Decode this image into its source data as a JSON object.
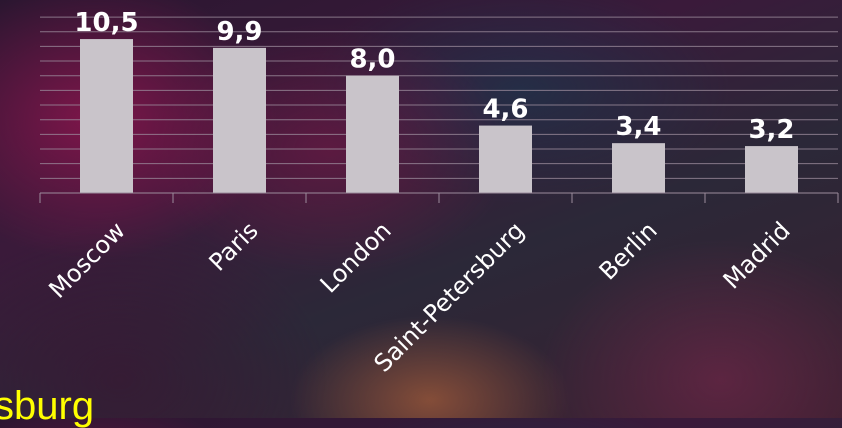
{
  "chart_data": {
    "type": "bar",
    "categories": [
      "Moscow",
      "Paris",
      "London",
      "Saint-Petersburg",
      "Berlin",
      "Madrid"
    ],
    "values": [
      10.5,
      9.9,
      8.0,
      4.6,
      3.4,
      3.2
    ],
    "value_labels": [
      "10,5",
      "9,9",
      "8,0",
      "4,6",
      "3,4",
      "3,2"
    ],
    "ylim": [
      0,
      12
    ],
    "grid": true,
    "bar_color": "#c9c4ca",
    "label_color": "#ffffff"
  },
  "caption": {
    "text": "sburg",
    "color": "#ffff00"
  }
}
